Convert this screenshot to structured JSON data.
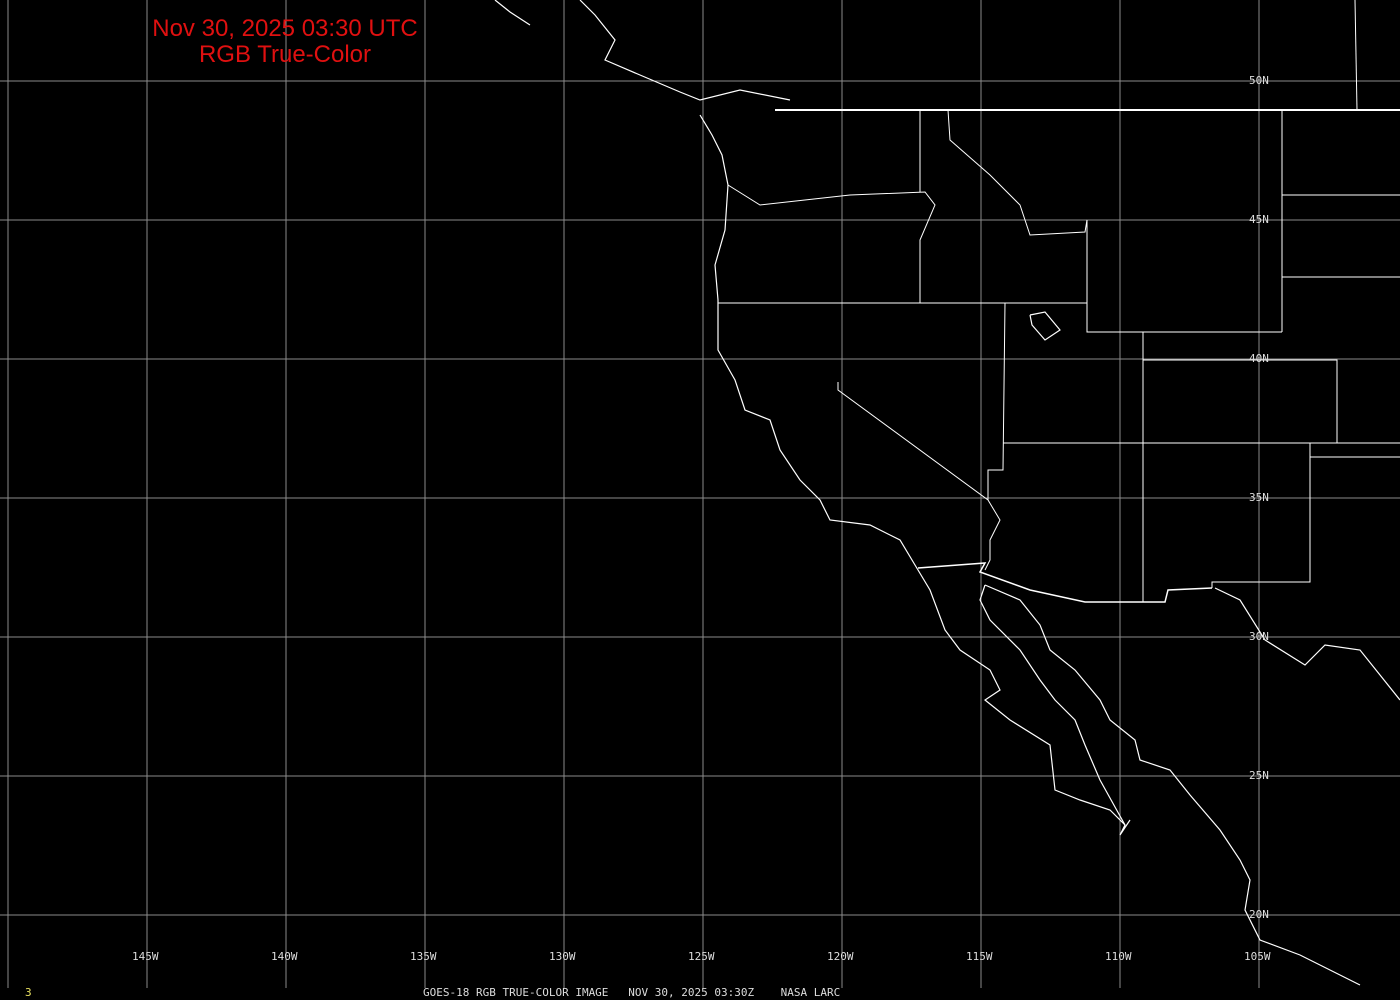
{
  "title": {
    "line1": "Nov 30, 2025 03:30 UTC",
    "line2": "RGB True-Color"
  },
  "lat_labels": [
    "50N",
    "45N",
    "40N",
    "35N",
    "30N",
    "25N",
    "20N"
  ],
  "lon_labels": [
    "145W",
    "140W",
    "135W",
    "130W",
    "125W",
    "120W",
    "115W",
    "110W",
    "105W"
  ],
  "footer": {
    "frame": "3",
    "caption": "GOES-18 RGB TRUE-COLOR IMAGE   NOV 30, 2025 03:30Z    NASA LARC"
  },
  "colors": {
    "background": "#000000",
    "grid": "#8a8a8a",
    "outline": "#ffffff",
    "title": "#e01010",
    "frame": "#e8e060"
  }
}
